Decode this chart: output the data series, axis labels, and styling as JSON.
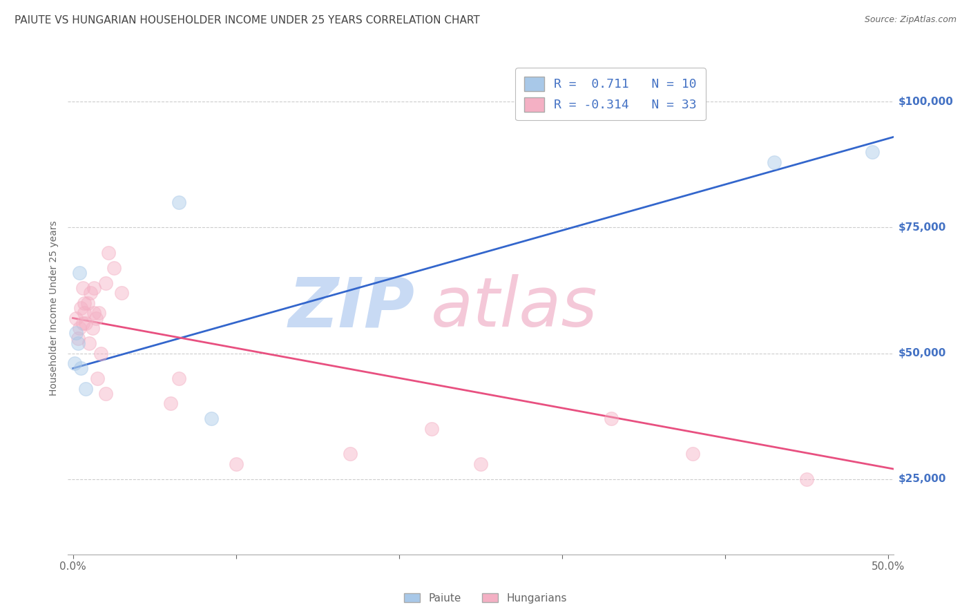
{
  "title": "PAIUTE VS HUNGARIAN HOUSEHOLDER INCOME UNDER 25 YEARS CORRELATION CHART",
  "source": "Source: ZipAtlas.com",
  "ylabel": "Householder Income Under 25 years",
  "ytick_values": [
    25000,
    50000,
    75000,
    100000
  ],
  "ymin": 10000,
  "ymax": 108000,
  "xmin": -0.003,
  "xmax": 0.503,
  "legend_blue_r": "0.711",
  "legend_blue_n": "10",
  "legend_pink_r": "-0.314",
  "legend_pink_n": "33",
  "paiute_x": [
    0.001,
    0.002,
    0.003,
    0.004,
    0.005,
    0.008,
    0.065,
    0.085,
    0.43,
    0.49
  ],
  "paiute_y": [
    48000,
    54000,
    52000,
    66000,
    47000,
    43000,
    80000,
    37000,
    88000,
    90000
  ],
  "hungarian_x": [
    0.002,
    0.003,
    0.004,
    0.005,
    0.006,
    0.006,
    0.007,
    0.007,
    0.008,
    0.009,
    0.01,
    0.011,
    0.012,
    0.013,
    0.013,
    0.014,
    0.015,
    0.016,
    0.017,
    0.02,
    0.02,
    0.022,
    0.025,
    0.03,
    0.06,
    0.065,
    0.1,
    0.17,
    0.22,
    0.25,
    0.33,
    0.38,
    0.45
  ],
  "hungarian_y": [
    57000,
    53000,
    55000,
    59000,
    56000,
    63000,
    58000,
    60000,
    56000,
    60000,
    52000,
    62000,
    55000,
    58000,
    63000,
    57000,
    45000,
    58000,
    50000,
    42000,
    64000,
    70000,
    67000,
    62000,
    40000,
    45000,
    28000,
    30000,
    35000,
    28000,
    37000,
    30000,
    25000
  ],
  "blue_line_x": [
    0.0,
    0.503
  ],
  "blue_line_y": [
    47000,
    93000
  ],
  "pink_line_x": [
    0.0,
    0.503
  ],
  "pink_line_y": [
    57000,
    27000
  ],
  "paiute_color": "#a8c8e8",
  "hungarian_color": "#f4b0c4",
  "blue_line_color": "#3366cc",
  "pink_line_color": "#e85080",
  "background_color": "#ffffff",
  "grid_color": "#cccccc",
  "title_color": "#444444",
  "axis_label_color": "#666666",
  "right_tick_color": "#4472c4",
  "scatter_size": 200,
  "scatter_alpha": 0.45
}
